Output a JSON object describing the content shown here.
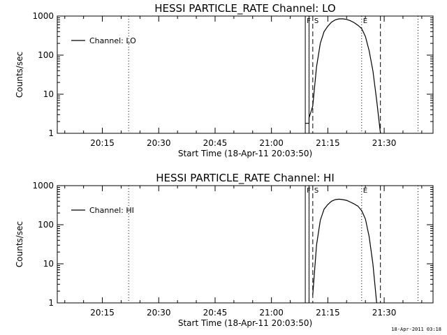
{
  "chart_data": [
    {
      "type": "line",
      "title": "HESSI PARTICLE_RATE Channel: LO",
      "xlabel": "Start Time (18-Apr-11 20:03:50)",
      "ylabel": "Counts/sec",
      "y_scale": "log",
      "ylim": [
        1,
        1000
      ],
      "xlim": [
        "20:03",
        "21:43"
      ],
      "x_ticks": [
        "20:15",
        "20:30",
        "20:45",
        "21:00",
        "21:15",
        "21:30"
      ],
      "y_ticks": [
        "1",
        "10",
        "100",
        "1000"
      ],
      "legend": {
        "placement": "top-left",
        "entries": [
          "Channel: LO"
        ]
      },
      "grid": false,
      "markers": [
        {
          "label": "",
          "time": "20:22",
          "style": "dotted"
        },
        {
          "label": "F",
          "time": "21:09",
          "style": "solid"
        },
        {
          "label": "",
          "time": "21:10",
          "style": "solid"
        },
        {
          "label": "S",
          "time": "21:11",
          "style": "dashed"
        },
        {
          "label": "E",
          "time": "21:24",
          "style": "dotted"
        },
        {
          "label": "",
          "time": "21:29",
          "style": "dashed"
        },
        {
          "label": "",
          "time": "21:39",
          "style": "dotted"
        }
      ],
      "series": [
        {
          "x": [
            "21:09",
            "21:10",
            "21:10",
            "21:11",
            "21:12",
            "21:13",
            "21:14",
            "21:15",
            "21:16",
            "21:17",
            "21:18",
            "21:19",
            "21:20",
            "21:21",
            "21:22",
            "21:23",
            "21:24",
            "21:25",
            "21:26",
            "21:27",
            "21:28",
            "21:29"
          ],
          "y": [
            1.8,
            1.8,
            2.5,
            5,
            50,
            200,
            400,
            550,
            700,
            800,
            850,
            850,
            820,
            760,
            680,
            580,
            480,
            300,
            130,
            40,
            7,
            1
          ]
        }
      ]
    },
    {
      "type": "line",
      "title": "HESSI PARTICLE_RATE Channel: HI",
      "xlabel": "Start Time (18-Apr-11 20:03:50)",
      "ylabel": "Counts/sec",
      "y_scale": "log",
      "ylim": [
        1,
        1000
      ],
      "xlim": [
        "20:03",
        "21:43"
      ],
      "x_ticks": [
        "20:15",
        "20:30",
        "20:45",
        "21:00",
        "21:15",
        "21:30"
      ],
      "y_ticks": [
        "1",
        "10",
        "100",
        "1000"
      ],
      "legend": {
        "placement": "top-left",
        "entries": [
          "Channel: HI"
        ]
      },
      "grid": false,
      "markers": [
        {
          "label": "",
          "time": "20:22",
          "style": "dotted"
        },
        {
          "label": "F",
          "time": "21:09",
          "style": "solid"
        },
        {
          "label": "",
          "time": "21:10",
          "style": "solid"
        },
        {
          "label": "S",
          "time": "21:11",
          "style": "dashed"
        },
        {
          "label": "E",
          "time": "21:24",
          "style": "dotted"
        },
        {
          "label": "",
          "time": "21:29",
          "style": "dashed"
        },
        {
          "label": "",
          "time": "21:39",
          "style": "dotted"
        }
      ],
      "series": [
        {
          "x": [
            "21:11",
            "21:12",
            "21:13",
            "21:14",
            "21:15",
            "21:16",
            "21:17",
            "21:18",
            "21:19",
            "21:20",
            "21:21",
            "21:22",
            "21:23",
            "21:24",
            "21:25",
            "21:26",
            "21:27",
            "21:28"
          ],
          "y": [
            1.6,
            30,
            130,
            250,
            330,
            400,
            440,
            450,
            440,
            420,
            380,
            340,
            300,
            230,
            140,
            50,
            10,
            1
          ]
        }
      ]
    }
  ],
  "timestamp": "18-Apr-2011 03:18"
}
